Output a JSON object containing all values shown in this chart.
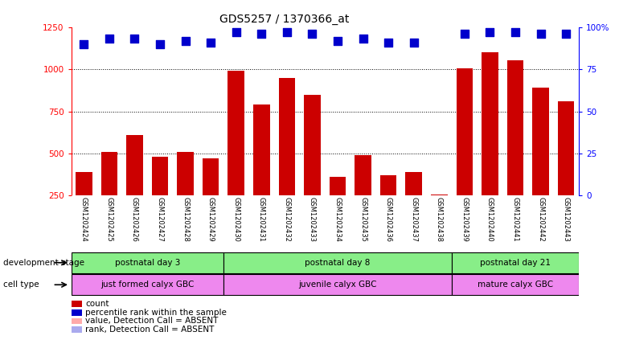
{
  "title": "GDS5257 / 1370366_at",
  "samples": [
    "GSM1202424",
    "GSM1202425",
    "GSM1202426",
    "GSM1202427",
    "GSM1202428",
    "GSM1202429",
    "GSM1202430",
    "GSM1202431",
    "GSM1202432",
    "GSM1202433",
    "GSM1202434",
    "GSM1202435",
    "GSM1202436",
    "GSM1202437",
    "GSM1202438",
    "GSM1202439",
    "GSM1202440",
    "GSM1202441",
    "GSM1202442",
    "GSM1202443"
  ],
  "counts": [
    390,
    510,
    610,
    480,
    510,
    470,
    990,
    790,
    950,
    850,
    360,
    490,
    370,
    390,
    255,
    1005,
    1100,
    1055,
    890,
    810
  ],
  "absent_count_indices": [],
  "percentile_ranks": [
    90,
    93,
    93,
    90,
    92,
    91,
    97,
    96,
    97,
    96,
    92,
    93,
    91,
    91,
    null,
    96,
    97,
    97,
    96,
    96
  ],
  "absent_rank_indices": [
    14
  ],
  "bar_color": "#cc0000",
  "dot_color": "#0000cc",
  "absent_count_color": "#ffaaaa",
  "absent_rank_color": "#aaaaee",
  "ylim_left": [
    250,
    1250
  ],
  "ylim_right": [
    0,
    100
  ],
  "yticks_left": [
    250,
    500,
    750,
    1000,
    1250
  ],
  "yticks_right": [
    0,
    25,
    50,
    75,
    100
  ],
  "ytick_labels_right": [
    "0",
    "25",
    "50",
    "75",
    "100%"
  ],
  "grid_values": [
    500,
    750,
    1000
  ],
  "groups": [
    {
      "label": "postnatal day 3",
      "start": 0,
      "end": 5,
      "color": "#88ee88"
    },
    {
      "label": "postnatal day 8",
      "start": 6,
      "end": 14,
      "color": "#88ee88"
    },
    {
      "label": "postnatal day 21",
      "start": 15,
      "end": 19,
      "color": "#88ee88"
    }
  ],
  "cell_types": [
    {
      "label": "just formed calyx GBC",
      "start": 0,
      "end": 5,
      "color": "#ee88ee"
    },
    {
      "label": "juvenile calyx GBC",
      "start": 6,
      "end": 14,
      "color": "#ee88ee"
    },
    {
      "label": "mature calyx GBC",
      "start": 15,
      "end": 19,
      "color": "#ee88ee"
    }
  ],
  "group_label": "development stage",
  "celltype_label": "cell type",
  "legend_items": [
    {
      "label": "count",
      "color": "#cc0000"
    },
    {
      "label": "percentile rank within the sample",
      "color": "#0000cc"
    },
    {
      "label": "value, Detection Call = ABSENT",
      "color": "#ffaaaa"
    },
    {
      "label": "rank, Detection Call = ABSENT",
      "color": "#aaaaee"
    }
  ],
  "bar_width": 0.65,
  "dot_size": 45,
  "absent_dot_size": 35
}
